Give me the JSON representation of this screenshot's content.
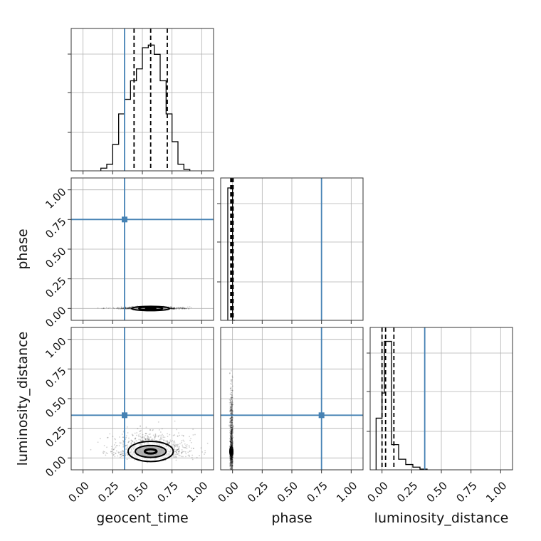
{
  "chart_data": {
    "type": "corner",
    "parameters": [
      "geocent_time",
      "phase",
      "luminosity_distance"
    ],
    "axis_range": [
      -0.1,
      1.1
    ],
    "ticks": [
      0.0,
      0.25,
      0.5,
      0.75,
      1.0
    ],
    "tick_labels": [
      "0.00",
      "0.25",
      "0.50",
      "0.75",
      "1.00"
    ],
    "grid": true,
    "truths": {
      "geocent_time": 0.35,
      "phase": 0.75,
      "luminosity_distance": 0.36
    },
    "marginals": {
      "geocent_time": {
        "bin_edges": [
          0.15,
          0.2,
          0.25,
          0.3,
          0.35,
          0.4,
          0.45,
          0.5,
          0.55,
          0.6,
          0.65,
          0.7,
          0.75,
          0.8,
          0.85,
          0.9
        ],
        "counts": [
          0.02,
          0.05,
          0.2,
          0.43,
          0.54,
          0.68,
          0.77,
          0.93,
          0.95,
          0.88,
          0.68,
          0.43,
          0.22,
          0.05,
          0.01
        ],
        "quantiles": [
          0.43,
          0.57,
          0.71
        ]
      },
      "phase": {
        "bin_edges": [
          -0.04,
          -0.02,
          0.0,
          0.02
        ],
        "counts": [
          1.0,
          1.0,
          0.0
        ],
        "quantiles": [
          -0.015,
          -0.005,
          0.005
        ]
      },
      "luminosity_distance": {
        "bin_edges": [
          -0.05,
          0.0,
          0.02,
          0.08,
          0.14,
          0.2,
          0.26,
          0.32,
          0.38
        ],
        "counts": [
          0.39,
          0.58,
          0.97,
          0.19,
          0.08,
          0.04,
          0.02,
          0.005
        ],
        "quantiles": [
          0.0,
          0.03,
          0.1
        ]
      }
    },
    "joint": {
      "geocent_time__phase": {
        "center": [
          0.57,
          0.0
        ],
        "spread": [
          0.4,
          0.012
        ],
        "contour_radii": [
          [
            0.04,
            0.006
          ],
          [
            0.1,
            0.012
          ],
          [
            0.16,
            0.018
          ]
        ]
      },
      "geocent_time__luminosity_distance": {
        "center": [
          0.57,
          0.055
        ],
        "spread": [
          0.5,
          0.14
        ],
        "contour_radii": [
          [
            0.05,
            0.018
          ],
          [
            0.13,
            0.05
          ],
          [
            0.19,
            0.085
          ]
        ]
      },
      "phase__luminosity_distance": {
        "center": [
          -0.01,
          0.055
        ],
        "spread": [
          0.02,
          0.45
        ],
        "contour_radii": [
          [
            0.008,
            0.02
          ],
          [
            0.012,
            0.04
          ]
        ]
      }
    }
  }
}
